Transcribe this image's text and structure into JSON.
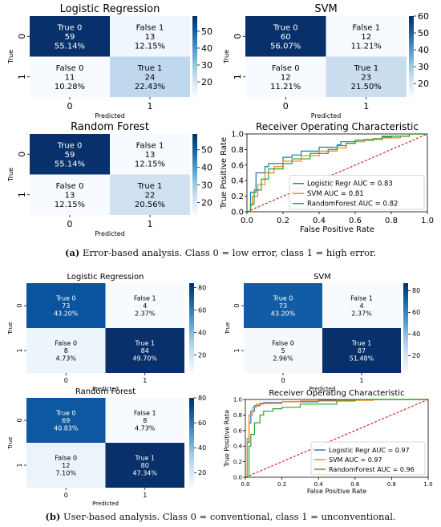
{
  "colors": {
    "roc_logreg": "#1f77b4",
    "roc_svm": "#ff7f0e",
    "roc_rf": "#2ca02c",
    "roc_diag": "#d62728"
  },
  "captions": {
    "a_tag": "(a)",
    "a_text": "Error-based analysis. Class 0 = low error, class 1 = high error.",
    "b_tag": "(b)",
    "b_text": "User-based analysis. Class 0 = conventional, class 1 = unconventional."
  },
  "chart_data": [
    {
      "type": "heatmap",
      "panel": "a",
      "title": "Logistic Regression",
      "xlabel": "Predicted",
      "ylabel": "True",
      "xticks": [
        "0",
        "1"
      ],
      "yticks": [
        "0",
        "1"
      ],
      "cells": [
        [
          "True 0",
          "59",
          "55.14%"
        ],
        [
          "False 1",
          "13",
          "12.15%"
        ],
        [
          "False 0",
          "11",
          "10.28%"
        ],
        [
          "True 1",
          "24",
          "22.43%"
        ]
      ],
      "values": [
        [
          59,
          13
        ],
        [
          11,
          24
        ]
      ],
      "vmin": 11,
      "vmax": 59,
      "colorbar_ticks": [
        20,
        30,
        40,
        50
      ]
    },
    {
      "type": "heatmap",
      "panel": "a",
      "title": "SVM",
      "xlabel": "Predicted",
      "ylabel": "True",
      "xticks": [
        "0",
        "1"
      ],
      "yticks": [
        "0",
        "1"
      ],
      "cells": [
        [
          "True 0",
          "60",
          "56.07%"
        ],
        [
          "False 1",
          "12",
          "11.21%"
        ],
        [
          "False 0",
          "12",
          "11.21%"
        ],
        [
          "True 1",
          "23",
          "21.50%"
        ]
      ],
      "values": [
        [
          60,
          12
        ],
        [
          12,
          23
        ]
      ],
      "vmin": 12,
      "vmax": 60,
      "colorbar_ticks": [
        20,
        30,
        40,
        50,
        60
      ]
    },
    {
      "type": "heatmap",
      "panel": "a",
      "title": "Random Forest",
      "xlabel": "Predicted",
      "ylabel": "True",
      "xticks": [
        "0",
        "1"
      ],
      "yticks": [
        "0",
        "1"
      ],
      "cells": [
        [
          "True 0",
          "59",
          "55.14%"
        ],
        [
          "False 1",
          "13",
          "12.15%"
        ],
        [
          "False 0",
          "13",
          "12.15%"
        ],
        [
          "True 1",
          "22",
          "20.56%"
        ]
      ],
      "values": [
        [
          59,
          13
        ],
        [
          13,
          22
        ]
      ],
      "vmin": 13,
      "vmax": 59,
      "colorbar_ticks": [
        20,
        30,
        40,
        50
      ]
    },
    {
      "type": "line",
      "panel": "a",
      "title": "Receiver Operating Characteristic",
      "xlabel": "False Positive Rate",
      "ylabel": "True Positive Rate",
      "xlim": [
        0,
        1
      ],
      "ylim": [
        0,
        1
      ],
      "xticks": [
        "0.0",
        "0.2",
        "0.4",
        "0.6",
        "0.8",
        "1.0"
      ],
      "yticks": [
        "0.0",
        "0.2",
        "0.4",
        "0.6",
        "0.8",
        "1.0"
      ],
      "legend_position": "lower-right",
      "series": [
        {
          "name": "Logistic Regr AUC = 0.83",
          "x": [
            0,
            0.02,
            0.02,
            0.05,
            0.05,
            0.1,
            0.12,
            0.2,
            0.25,
            0.3,
            0.4,
            0.5,
            0.52,
            0.6,
            0.7,
            0.75,
            0.8,
            0.85,
            0.9,
            1
          ],
          "y": [
            0,
            0.1,
            0.25,
            0.4,
            0.5,
            0.58,
            0.62,
            0.7,
            0.73,
            0.78,
            0.83,
            0.86,
            0.9,
            0.92,
            0.93,
            0.96,
            0.97,
            0.97,
            1,
            1
          ]
        },
        {
          "name": "SVM AUC = 0.81",
          "x": [
            0,
            0.02,
            0.03,
            0.06,
            0.1,
            0.15,
            0.2,
            0.3,
            0.4,
            0.5,
            0.55,
            0.6,
            0.65,
            0.75,
            0.85,
            0.9,
            1
          ],
          "y": [
            0,
            0.08,
            0.2,
            0.35,
            0.5,
            0.58,
            0.65,
            0.72,
            0.78,
            0.82,
            0.88,
            0.9,
            0.93,
            0.95,
            0.97,
            1,
            1
          ]
        },
        {
          "name": "RandomForest AUC = 0.82",
          "x": [
            0,
            0.02,
            0.04,
            0.08,
            0.12,
            0.2,
            0.25,
            0.35,
            0.45,
            0.5,
            0.55,
            0.6,
            0.7,
            0.75,
            0.85,
            0.9,
            1
          ],
          "y": [
            0,
            0.1,
            0.28,
            0.42,
            0.55,
            0.62,
            0.68,
            0.75,
            0.8,
            0.85,
            0.88,
            0.92,
            0.94,
            0.97,
            0.97,
            1,
            1
          ]
        },
        {
          "name": "",
          "dashed": true,
          "x": [
            0,
            1
          ],
          "y": [
            0,
            1
          ]
        }
      ]
    },
    {
      "type": "heatmap",
      "panel": "b",
      "title": "Logistic Regression",
      "xlabel": "Predicted",
      "ylabel": "True",
      "xticks": [
        "0",
        "1"
      ],
      "yticks": [
        "0",
        "1"
      ],
      "cells": [
        [
          "True 0",
          "73",
          "43.20%"
        ],
        [
          "False 1",
          "4",
          "2.37%"
        ],
        [
          "False 0",
          "8",
          "4.73%"
        ],
        [
          "True 1",
          "84",
          "49.70%"
        ]
      ],
      "values": [
        [
          73,
          4
        ],
        [
          8,
          84
        ]
      ],
      "vmin": 4,
      "vmax": 84,
      "colorbar_ticks": [
        20,
        40,
        60,
        80
      ]
    },
    {
      "type": "heatmap",
      "panel": "b",
      "title": "SVM",
      "xlabel": "Predicted",
      "ylabel": "True",
      "xticks": [
        "0",
        "1"
      ],
      "yticks": [
        "0",
        "1"
      ],
      "cells": [
        [
          "True 0",
          "73",
          "43.20%"
        ],
        [
          "False 1",
          "4",
          "2.37%"
        ],
        [
          "False 0",
          "5",
          "2.96%"
        ],
        [
          "True 1",
          "87",
          "51.48%"
        ]
      ],
      "values": [
        [
          73,
          4
        ],
        [
          5,
          87
        ]
      ],
      "vmin": 4,
      "vmax": 87,
      "colorbar_ticks": [
        20,
        40,
        60,
        80
      ]
    },
    {
      "type": "heatmap",
      "panel": "b",
      "title": "Random Forest",
      "xlabel": "Predicted",
      "ylabel": "True",
      "xticks": [
        "0",
        "1"
      ],
      "yticks": [
        "0",
        "1"
      ],
      "cells": [
        [
          "True 0",
          "69",
          "40.83%"
        ],
        [
          "False 1",
          "8",
          "4.73%"
        ],
        [
          "False 0",
          "12",
          "7.10%"
        ],
        [
          "True 1",
          "80",
          "47.34%"
        ]
      ],
      "values": [
        [
          69,
          8
        ],
        [
          12,
          80
        ]
      ],
      "vmin": 8,
      "vmax": 80,
      "colorbar_ticks": [
        20,
        40,
        60,
        80
      ]
    },
    {
      "type": "line",
      "panel": "b",
      "title": "Receiver Operating Characteristic",
      "xlabel": "False Positive Rate",
      "ylabel": "True Positive Rate",
      "xlim": [
        0,
        1
      ],
      "ylim": [
        0,
        1
      ],
      "xticks": [
        "0.0",
        "0.2",
        "0.4",
        "0.6",
        "0.8",
        "1.0"
      ],
      "yticks": [
        "0.0",
        "0.2",
        "0.4",
        "0.6",
        "0.8",
        "1.0"
      ],
      "legend_position": "lower-right",
      "series": [
        {
          "name": "Logistic Regr AUC = 0.97",
          "x": [
            0,
            0.01,
            0.02,
            0.03,
            0.05,
            0.08,
            0.1,
            0.2,
            0.4,
            0.6,
            1
          ],
          "y": [
            0,
            0.45,
            0.7,
            0.85,
            0.92,
            0.95,
            0.96,
            0.97,
            0.99,
            1,
            1
          ]
        },
        {
          "name": "SVM AUC = 0.97",
          "x": [
            0,
            0.01,
            0.02,
            0.04,
            0.06,
            0.1,
            0.2,
            0.3,
            0.5,
            0.7,
            1
          ],
          "y": [
            0,
            0.5,
            0.8,
            0.9,
            0.94,
            0.95,
            0.97,
            0.98,
            0.99,
            1,
            1
          ]
        },
        {
          "name": "RandomForest AUC = 0.96",
          "x": [
            0,
            0.02,
            0.03,
            0.05,
            0.08,
            0.1,
            0.15,
            0.2,
            0.3,
            0.5,
            0.6,
            1
          ],
          "y": [
            0,
            0.4,
            0.55,
            0.7,
            0.8,
            0.85,
            0.88,
            0.9,
            0.94,
            0.98,
            1,
            1
          ]
        },
        {
          "name": "",
          "dashed": true,
          "x": [
            0,
            1
          ],
          "y": [
            0,
            1
          ]
        }
      ]
    }
  ]
}
